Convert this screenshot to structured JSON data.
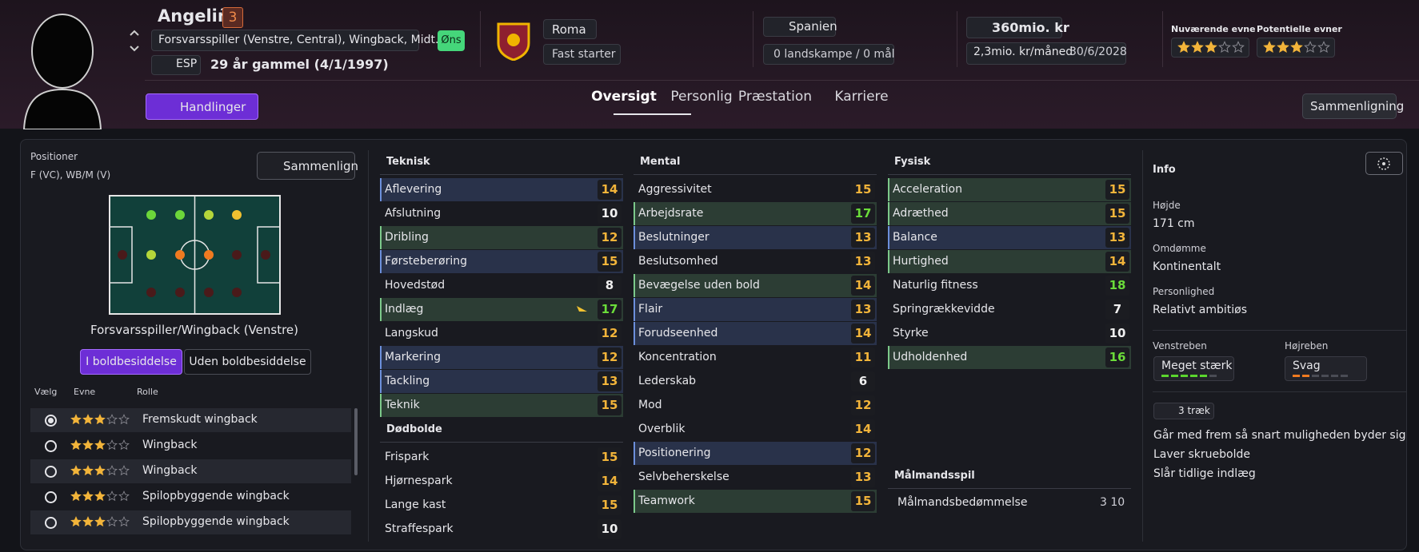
{
  "header": {
    "name": "Angeliño",
    "number": "3",
    "positions": "Forsvarsspiller (Venstre, Central), Wingback, Midt...",
    "nation": "ESP",
    "age": "29 år gammel (4/1/1997)",
    "status": "Øns",
    "club": "Roma",
    "club_status": "Fast starter",
    "country": "Spanien",
    "caps": "0 landskampe / 0 mål",
    "value": "360mio. kr",
    "wage": "2,3mio. kr/måned",
    "contract": "30/6/2028",
    "current_ability_label": "Nuværende evne",
    "current_ability_stars": 3,
    "potential_ability_label": "Potentielle evner",
    "potential_ability_stars": 3,
    "actions": "Handlinger",
    "tabs": [
      "Oversigt",
      "Personlig",
      "Præstation",
      "Karriere"
    ],
    "compare": "Sammenligning"
  },
  "positions_panel": {
    "label": "Positioner",
    "positions": "F (VC), WB/M (V)",
    "compare": "Sammenlign",
    "pitch_caption": "Forsvarsspiller/Wingback (Venstre)",
    "toggle": [
      "I boldbesiddelse",
      "Uden boldbesiddelse"
    ]
  },
  "roles": {
    "headers": [
      "Vælg",
      "Evne",
      "Rolle"
    ],
    "rows": [
      {
        "stars": 3,
        "role": "Fremskudt wingback"
      },
      {
        "stars": 3,
        "role": "Wingback"
      },
      {
        "stars": 3,
        "role": "Wingback"
      },
      {
        "stars": 3,
        "role": "Spilopbyggende wingback"
      },
      {
        "stars": 3,
        "role": "Spilopbyggende wingback"
      }
    ]
  },
  "technical": {
    "title": "Teknisk",
    "rows": [
      {
        "name": "Aflevering",
        "value": 14,
        "hl": "blue"
      },
      {
        "name": "Afslutning",
        "value": 10,
        "hl": null
      },
      {
        "name": "Dribling",
        "value": 12,
        "hl": "green"
      },
      {
        "name": "Førsteberøring",
        "value": 15,
        "hl": "blue"
      },
      {
        "name": "Hovedstød",
        "value": 8,
        "hl": null
      },
      {
        "name": "Indlæg",
        "value": 17,
        "hl": "green"
      },
      {
        "name": "Langskud",
        "value": 12,
        "hl": null
      },
      {
        "name": "Markering",
        "value": 12,
        "hl": "blue"
      },
      {
        "name": "Tackling",
        "value": 13,
        "hl": "blue"
      },
      {
        "name": "Teknik",
        "value": 15,
        "hl": "green"
      }
    ]
  },
  "set_pieces": {
    "title": "Dødbolde",
    "rows": [
      {
        "name": "Frispark",
        "value": 15,
        "hl": null
      },
      {
        "name": "Hjørnespark",
        "value": 14,
        "hl": null
      },
      {
        "name": "Lange kast",
        "value": 15,
        "hl": null
      },
      {
        "name": "Straffespark",
        "value": 10,
        "hl": null
      }
    ]
  },
  "mental": {
    "title": "Mental",
    "rows": [
      {
        "name": "Aggressivitet",
        "value": 15,
        "hl": null
      },
      {
        "name": "Arbejdsrate",
        "value": 17,
        "hl": "green"
      },
      {
        "name": "Beslutninger",
        "value": 13,
        "hl": "blue"
      },
      {
        "name": "Beslutsomhed",
        "value": 13,
        "hl": null
      },
      {
        "name": "Bevægelse uden bold",
        "value": 14,
        "hl": "green"
      },
      {
        "name": "Flair",
        "value": 13,
        "hl": "blue"
      },
      {
        "name": "Forudseenhed",
        "value": 14,
        "hl": "blue"
      },
      {
        "name": "Koncentration",
        "value": 11,
        "hl": null
      },
      {
        "name": "Lederskab",
        "value": 6,
        "hl": null
      },
      {
        "name": "Mod",
        "value": 12,
        "hl": null
      },
      {
        "name": "Overblik",
        "value": 14,
        "hl": null
      },
      {
        "name": "Positionering",
        "value": 12,
        "hl": "blue"
      },
      {
        "name": "Selvbeherskelse",
        "value": 13,
        "hl": null
      },
      {
        "name": "Teamwork",
        "value": 15,
        "hl": "green"
      }
    ]
  },
  "physical": {
    "title": "Fysisk",
    "rows": [
      {
        "name": "Acceleration",
        "value": 15,
        "hl": "green"
      },
      {
        "name": "Adræthed",
        "value": 15,
        "hl": "green"
      },
      {
        "name": "Balance",
        "value": 13,
        "hl": "blue"
      },
      {
        "name": "Hurtighed",
        "value": 14,
        "hl": "green"
      },
      {
        "name": "Naturlig fitness",
        "value": 18,
        "hl": null
      },
      {
        "name": "Springrækkevidde",
        "value": 7,
        "hl": null
      },
      {
        "name": "Styrke",
        "value": 10,
        "hl": null
      },
      {
        "name": "Udholdenhed",
        "value": 16,
        "hl": "green"
      }
    ]
  },
  "goalkeeping": {
    "title": "Målmandsspil",
    "name": "Målmandsbedømmelse",
    "value": "3 10"
  },
  "info": {
    "title": "Info",
    "height_label": "Højde",
    "height": "171 cm",
    "reputation_label": "Omdømme",
    "reputation": "Kontinentalt",
    "personality_label": "Personlighed",
    "personality": "Relativt ambitiøs",
    "left_foot_label": "Venstreben",
    "left_foot": "Meget stærk",
    "right_foot_label": "Højreben",
    "right_foot": "Svag",
    "traits_label": "3 træk",
    "traits": [
      "Går med frem så snart muligheden byder sig",
      "Laver skruebolde",
      "Slår tidlige indlæg"
    ]
  }
}
